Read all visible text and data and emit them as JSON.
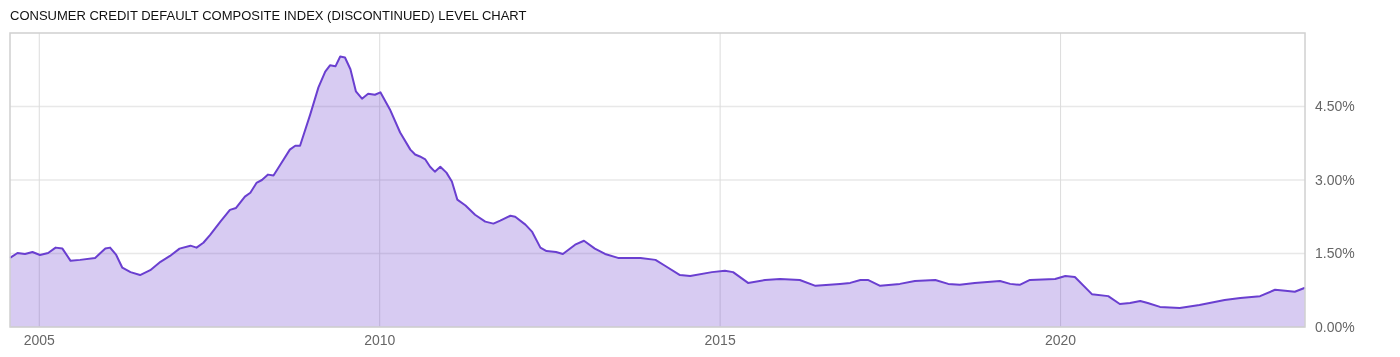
{
  "chart_data": {
    "type": "area",
    "title": "CONSUMER CREDIT DEFAULT COMPOSITE INDEX (DISCONTINUED) LEVEL CHART",
    "x": [
      2004.57,
      2004.68,
      2004.79,
      2004.9,
      2005.01,
      2005.13,
      2005.24,
      2005.34,
      2005.46,
      2005.6,
      2005.82,
      2005.97,
      2006.04,
      2006.13,
      2006.22,
      2006.34,
      2006.48,
      2006.63,
      2006.78,
      2006.92,
      2007.06,
      2007.22,
      2007.31,
      2007.41,
      2007.51,
      2007.66,
      2007.8,
      2007.89,
      2008.02,
      2008.1,
      2008.19,
      2008.27,
      2008.36,
      2008.44,
      2008.54,
      2008.68,
      2008.76,
      2008.83,
      2008.98,
      2009.1,
      2009.2,
      2009.27,
      2009.35,
      2009.42,
      2009.49,
      2009.57,
      2009.65,
      2009.74,
      2009.83,
      2009.93,
      2010.01,
      2010.15,
      2010.3,
      2010.45,
      2010.52,
      2010.59,
      2010.67,
      2010.74,
      2010.81,
      2010.89,
      2010.98,
      2011.06,
      2011.14,
      2011.26,
      2011.4,
      2011.55,
      2011.67,
      2011.77,
      2011.92,
      2011.99,
      2012.14,
      2012.24,
      2012.36,
      2012.45,
      2012.59,
      2012.69,
      2012.87,
      2013.0,
      2013.16,
      2013.31,
      2013.5,
      2013.83,
      2014.05,
      2014.19,
      2014.41,
      2014.56,
      2014.88,
      2015.07,
      2015.19,
      2015.41,
      2015.66,
      2015.88,
      2016.17,
      2016.4,
      2016.76,
      2016.91,
      2017.06,
      2017.17,
      2017.35,
      2017.64,
      2017.86,
      2018.16,
      2018.35,
      2018.52,
      2018.74,
      2019.11,
      2019.26,
      2019.4,
      2019.55,
      2019.92,
      2020.07,
      2020.21,
      2020.46,
      2020.7,
      2020.87,
      2021.02,
      2021.17,
      2021.28,
      2021.46,
      2021.75,
      2022.04,
      2022.41,
      2022.64,
      2022.93,
      2023.15,
      2023.3,
      2023.44,
      2023.59
    ],
    "series": [
      {
        "color": "#6a3fd0",
        "values": [
          1.41,
          1.51,
          1.49,
          1.53,
          1.47,
          1.51,
          1.62,
          1.6,
          1.35,
          1.37,
          1.41,
          1.6,
          1.62,
          1.47,
          1.21,
          1.12,
          1.06,
          1.16,
          1.33,
          1.45,
          1.6,
          1.66,
          1.62,
          1.72,
          1.88,
          2.15,
          2.39,
          2.43,
          2.66,
          2.74,
          2.94,
          3.0,
          3.11,
          3.09,
          3.31,
          3.62,
          3.7,
          3.7,
          4.34,
          4.89,
          5.21,
          5.34,
          5.32,
          5.52,
          5.5,
          5.26,
          4.81,
          4.66,
          4.76,
          4.74,
          4.79,
          4.44,
          3.97,
          3.62,
          3.52,
          3.48,
          3.42,
          3.27,
          3.17,
          3.27,
          3.15,
          2.97,
          2.6,
          2.48,
          2.29,
          2.15,
          2.11,
          2.17,
          2.27,
          2.25,
          2.09,
          1.94,
          1.62,
          1.55,
          1.53,
          1.49,
          1.68,
          1.76,
          1.6,
          1.49,
          1.41,
          1.41,
          1.37,
          1.25,
          1.06,
          1.04,
          1.12,
          1.15,
          1.12,
          0.9,
          0.96,
          0.98,
          0.96,
          0.84,
          0.88,
          0.9,
          0.96,
          0.96,
          0.84,
          0.88,
          0.94,
          0.96,
          0.88,
          0.86,
          0.9,
          0.94,
          0.88,
          0.86,
          0.96,
          0.98,
          1.04,
          1.02,
          0.67,
          0.63,
          0.47,
          0.49,
          0.53,
          0.49,
          0.41,
          0.39,
          0.45,
          0.55,
          0.59,
          0.63,
          0.76,
          0.74,
          0.72,
          0.8
        ]
      }
    ],
    "xlim": [
      2004.57,
      2023.59
    ],
    "xticks": [
      2005,
      2010,
      2015,
      2020
    ],
    "ylim": [
      0,
      6
    ],
    "yticks": [
      {
        "value": 0,
        "label": "0.00%"
      },
      {
        "value": 1.5,
        "label": "1.50%"
      },
      {
        "value": 3,
        "label": "3.00%"
      },
      {
        "value": 4.5,
        "label": "4.50%"
      }
    ],
    "grid": true
  }
}
